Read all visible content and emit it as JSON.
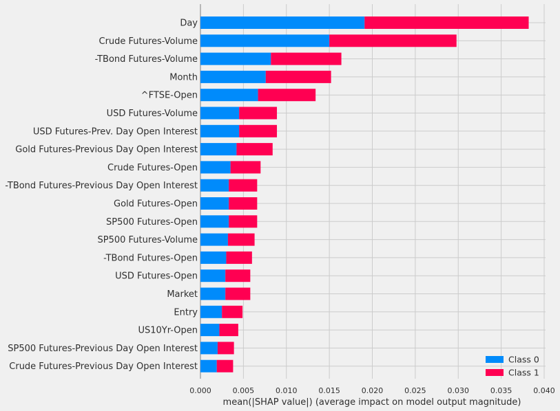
{
  "chart_data": {
    "type": "bar",
    "orientation": "horizontal",
    "stacked": true,
    "categories": [
      "Day",
      "Crude Futures-Volume",
      "-TBond Futures-Volume",
      "Month",
      "^FTSE-Open",
      "USD Futures-Volume",
      "USD Futures-Prev. Day Open Interest",
      "Gold Futures-Previous Day Open Interest",
      "Crude Futures-Open",
      "-TBond Futures-Previous Day Open Interest",
      "Gold Futures-Open",
      "SP500 Futures-Open",
      "SP500 Futures-Volume",
      "-TBond Futures-Open",
      "USD Futures-Open",
      "Market",
      "Entry",
      "US10Yr-Open",
      "SP500 Futures-Previous Day Open Interest",
      "Crude Futures-Previous Day Open Interest"
    ],
    "series": [
      {
        "name": "Class 0",
        "color": "#008bfb",
        "values": [
          0.0191,
          0.015,
          0.0082,
          0.0076,
          0.0067,
          0.0045,
          0.0045,
          0.0042,
          0.0035,
          0.0033,
          0.0033,
          0.0033,
          0.0032,
          0.003,
          0.0029,
          0.0029,
          0.0025,
          0.0022,
          0.002,
          0.0019
        ]
      },
      {
        "name": "Class 1",
        "color": "#ff0052",
        "values": [
          0.0191,
          0.0148,
          0.0082,
          0.0076,
          0.0067,
          0.0044,
          0.0044,
          0.0042,
          0.0035,
          0.0033,
          0.0033,
          0.0033,
          0.0031,
          0.003,
          0.0029,
          0.0029,
          0.0024,
          0.0022,
          0.0019,
          0.0019
        ]
      }
    ],
    "x_ticks": [
      "0.000",
      "0.005",
      "0.010",
      "0.015",
      "0.020",
      "0.025",
      "0.030",
      "0.035",
      "0.040"
    ],
    "xlim": [
      0,
      0.04
    ],
    "xlabel": "mean(|SHAP value|) (average impact on model output magnitude)",
    "ylabel": "",
    "title": "",
    "grid": true,
    "legend": {
      "position": "bottom-right",
      "entries": [
        "Class 0",
        "Class 1"
      ]
    },
    "colors": {
      "background": "#f0f0f0",
      "grid": "#cbcbcb",
      "axis_line": "#999999",
      "text": "#2f2f2f"
    }
  }
}
